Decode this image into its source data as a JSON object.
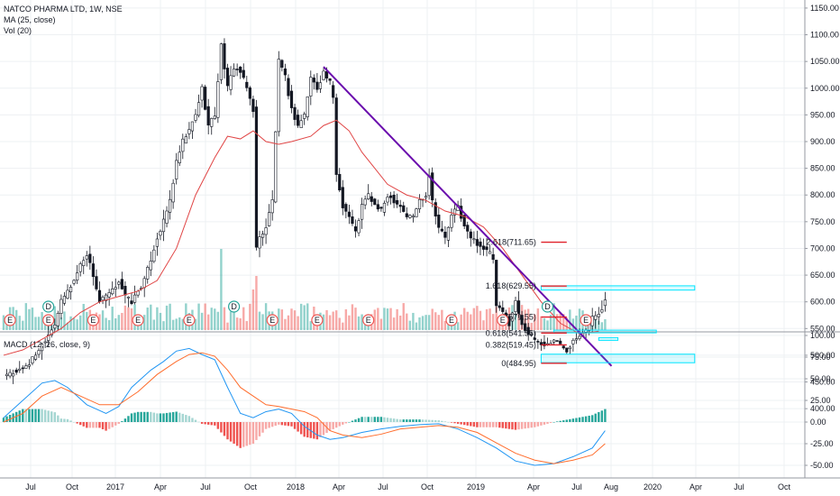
{
  "legend": {
    "symbol": "NATCO PHARMA LTD, 1W, NSE",
    "ma": "MA (25, close)",
    "vol": "Vol (20)",
    "macd": "MACD (12, 26, close, 9)"
  },
  "colors": {
    "up": "#26a69a",
    "down": "#ef5350",
    "ma": "#e04545",
    "trendline": "#6a0dad",
    "fib": "#e0202a",
    "zone": "#00e5ff",
    "macd_line": "#2196f3",
    "signal_line": "#ff6d2d",
    "grid": "#eef0f3"
  },
  "chart_data": [
    {
      "type": "candlestick",
      "title": "NATCO PHARMA LTD, 1W, NSE",
      "price_axis": {
        "ylim": [
          380,
          1160
        ],
        "ticks": [
          "1150.00",
          "1100.00",
          "1050.00",
          "1000.00",
          "950.00",
          "900.00",
          "850.00",
          "800.00",
          "750.00",
          "700.00",
          "650.00",
          "600.00",
          "550.00",
          "500.00",
          "450.00",
          "400.00"
        ]
      },
      "time_axis": {
        "labels": [
          "Jul",
          "Oct",
          "2017",
          "Apr",
          "Jul",
          "Oct",
          "2018",
          "Apr",
          "Jul",
          "Oct",
          "2019",
          "Apr",
          "Jul",
          "Aug",
          "2020",
          "Apr",
          "Jul",
          "Oct"
        ]
      },
      "price_path": [
        [
          0,
          460
        ],
        [
          4,
          470
        ],
        [
          8,
          485
        ],
        [
          12,
          520
        ],
        [
          16,
          560
        ],
        [
          18,
          600
        ],
        [
          20,
          620
        ],
        [
          22,
          640
        ],
        [
          24,
          670
        ],
        [
          26,
          690
        ],
        [
          28,
          650
        ],
        [
          30,
          600
        ],
        [
          34,
          620
        ],
        [
          36,
          640
        ],
        [
          38,
          610
        ],
        [
          40,
          600
        ],
        [
          44,
          640
        ],
        [
          46,
          680
        ],
        [
          48,
          720
        ],
        [
          50,
          750
        ],
        [
          52,
          790
        ],
        [
          54,
          860
        ],
        [
          56,
          900
        ],
        [
          58,
          920
        ],
        [
          60,
          950
        ],
        [
          62,
          1000
        ],
        [
          64,
          930
        ],
        [
          66,
          950
        ],
        [
          68,
          1080
        ],
        [
          70,
          1000
        ],
        [
          72,
          1040
        ],
        [
          74,
          1030
        ],
        [
          76,
          1000
        ],
        [
          78,
          960
        ],
        [
          79,
          700
        ],
        [
          80,
          720
        ],
        [
          82,
          740
        ],
        [
          84,
          790
        ],
        [
          86,
          1050
        ],
        [
          88,
          1020
        ],
        [
          90,
          960
        ],
        [
          92,
          930
        ],
        [
          94,
          950
        ],
        [
          96,
          1020
        ],
        [
          98,
          1000
        ],
        [
          100,
          1030
        ],
        [
          102,
          1010
        ],
        [
          103,
          980
        ],
        [
          104,
          840
        ],
        [
          106,
          780
        ],
        [
          108,
          760
        ],
        [
          110,
          730
        ],
        [
          112,
          780
        ],
        [
          114,
          800
        ],
        [
          116,
          780
        ],
        [
          118,
          770
        ],
        [
          120,
          800
        ],
        [
          122,
          790
        ],
        [
          124,
          780
        ],
        [
          126,
          760
        ],
        [
          128,
          760
        ],
        [
          130,
          790
        ],
        [
          132,
          800
        ],
        [
          133,
          840
        ],
        [
          134,
          790
        ],
        [
          136,
          740
        ],
        [
          138,
          720
        ],
        [
          140,
          760
        ],
        [
          142,
          780
        ],
        [
          144,
          740
        ],
        [
          146,
          720
        ],
        [
          148,
          710
        ],
        [
          150,
          700
        ],
        [
          152,
          690
        ],
        [
          153,
          680
        ],
        [
          154,
          590
        ],
        [
          156,
          580
        ],
        [
          158,
          560
        ],
        [
          160,
          600
        ],
        [
          162,
          560
        ],
        [
          164,
          540
        ],
        [
          166,
          530
        ],
        [
          168,
          520
        ],
        [
          170,
          520
        ],
        [
          172,
          530
        ],
        [
          174,
          520
        ],
        [
          176,
          510
        ],
        [
          178,
          530
        ],
        [
          180,
          540
        ],
        [
          182,
          550
        ],
        [
          184,
          570
        ],
        [
          186,
          580
        ],
        [
          188,
          600
        ]
      ],
      "ma_path": [
        [
          0,
          500
        ],
        [
          6,
          510
        ],
        [
          12,
          530
        ],
        [
          18,
          550
        ],
        [
          24,
          580
        ],
        [
          30,
          600
        ],
        [
          36,
          610
        ],
        [
          42,
          620
        ],
        [
          48,
          640
        ],
        [
          54,
          700
        ],
        [
          60,
          800
        ],
        [
          66,
          870
        ],
        [
          70,
          910
        ],
        [
          74,
          905
        ],
        [
          78,
          920
        ],
        [
          82,
          900
        ],
        [
          86,
          895
        ],
        [
          90,
          900
        ],
        [
          96,
          910
        ],
        [
          100,
          930
        ],
        [
          104,
          940
        ],
        [
          108,
          920
        ],
        [
          112,
          880
        ],
        [
          116,
          850
        ],
        [
          120,
          820
        ],
        [
          126,
          800
        ],
        [
          132,
          790
        ],
        [
          138,
          770
        ],
        [
          144,
          760
        ],
        [
          150,
          740
        ],
        [
          156,
          700
        ],
        [
          162,
          650
        ],
        [
          168,
          600
        ],
        [
          174,
          560
        ],
        [
          180,
          540
        ],
        [
          186,
          545
        ]
      ],
      "trendline": {
        "from": [
          100,
          1040
        ],
        "to": [
          190,
          480
        ]
      },
      "fibonacci": [
        {
          "label": "2.618(711.65)",
          "value": 711.65
        },
        {
          "label": "1.618(629.55)",
          "value": 629.55
        },
        {
          "label": "1(571.55)",
          "value": 571.55
        },
        {
          "label": "0.618(541.55)",
          "value": 541.55
        },
        {
          "label": "0.382(519.45)",
          "value": 519.45
        },
        {
          "label": "0(484.95)",
          "value": 484.95
        }
      ],
      "zones": [
        {
          "from": 168,
          "to": 216,
          "low": 622,
          "high": 630
        },
        {
          "from": 172,
          "to": 204,
          "low": 542,
          "high": 547
        },
        {
          "from": 186,
          "to": 192,
          "low": 529,
          "high": 533
        },
        {
          "from": 168,
          "to": 216,
          "low": 486,
          "high": 502
        }
      ],
      "events": [
        {
          "t": 2,
          "label": "E",
          "kind": "earnings"
        },
        {
          "t": 14,
          "label": "E",
          "kind": "earnings"
        },
        {
          "t": 14,
          "label": "D",
          "kind": "dividend"
        },
        {
          "t": 28,
          "label": "E",
          "kind": "earnings"
        },
        {
          "t": 42,
          "label": "E",
          "kind": "earnings"
        },
        {
          "t": 58,
          "label": "E",
          "kind": "earnings"
        },
        {
          "t": 72,
          "label": "D",
          "kind": "dividend"
        },
        {
          "t": 84,
          "label": "E",
          "kind": "earnings"
        },
        {
          "t": 98,
          "label": "E",
          "kind": "earnings"
        },
        {
          "t": 114,
          "label": "E",
          "kind": "earnings"
        },
        {
          "t": 140,
          "label": "E",
          "kind": "earnings"
        },
        {
          "t": 156,
          "label": "E",
          "kind": "earnings"
        },
        {
          "t": 170,
          "label": "D",
          "kind": "dividend"
        },
        {
          "t": 182,
          "label": "E",
          "kind": "earnings"
        }
      ]
    },
    {
      "type": "histogram+line",
      "title": "MACD (12, 26, close, 9)",
      "ylim": [
        -62,
        100
      ],
      "ticks": [
        "100.00",
        "75.00",
        "50.00",
        "25.00",
        "0.00",
        "-25.00",
        "-50.00"
      ],
      "macd_path": [
        [
          0,
          5
        ],
        [
          6,
          25
        ],
        [
          12,
          45
        ],
        [
          16,
          48
        ],
        [
          20,
          40
        ],
        [
          26,
          20
        ],
        [
          32,
          10
        ],
        [
          36,
          18
        ],
        [
          40,
          40
        ],
        [
          46,
          60
        ],
        [
          50,
          70
        ],
        [
          54,
          82
        ],
        [
          58,
          85
        ],
        [
          62,
          78
        ],
        [
          66,
          72
        ],
        [
          70,
          40
        ],
        [
          74,
          10
        ],
        [
          78,
          5
        ],
        [
          82,
          12
        ],
        [
          86,
          15
        ],
        [
          90,
          10
        ],
        [
          94,
          -5
        ],
        [
          98,
          -15
        ],
        [
          102,
          -20
        ],
        [
          106,
          -18
        ],
        [
          112,
          -12
        ],
        [
          118,
          -8
        ],
        [
          124,
          -5
        ],
        [
          130,
          -3
        ],
        [
          136,
          -2
        ],
        [
          142,
          -8
        ],
        [
          148,
          -18
        ],
        [
          154,
          -30
        ],
        [
          160,
          -45
        ],
        [
          166,
          -50
        ],
        [
          172,
          -48
        ],
        [
          178,
          -40
        ],
        [
          184,
          -30
        ],
        [
          188,
          -10
        ]
      ],
      "signal_path": [
        [
          0,
          0
        ],
        [
          6,
          10
        ],
        [
          12,
          30
        ],
        [
          18,
          40
        ],
        [
          24,
          30
        ],
        [
          30,
          20
        ],
        [
          36,
          20
        ],
        [
          42,
          35
        ],
        [
          48,
          55
        ],
        [
          54,
          70
        ],
        [
          58,
          78
        ],
        [
          62,
          80
        ],
        [
          66,
          76
        ],
        [
          70,
          60
        ],
        [
          74,
          40
        ],
        [
          78,
          30
        ],
        [
          82,
          20
        ],
        [
          86,
          18
        ],
        [
          90,
          15
        ],
        [
          94,
          12
        ],
        [
          98,
          5
        ],
        [
          102,
          -10
        ],
        [
          106,
          -15
        ],
        [
          112,
          -18
        ],
        [
          118,
          -14
        ],
        [
          124,
          -8
        ],
        [
          130,
          -6
        ],
        [
          136,
          -4
        ],
        [
          142,
          -6
        ],
        [
          148,
          -12
        ],
        [
          154,
          -24
        ],
        [
          160,
          -36
        ],
        [
          166,
          -44
        ],
        [
          172,
          -48
        ],
        [
          178,
          -44
        ],
        [
          184,
          -38
        ],
        [
          188,
          -25
        ]
      ]
    }
  ]
}
